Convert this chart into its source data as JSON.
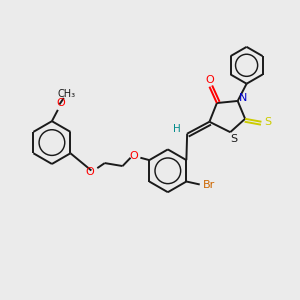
{
  "bg_color": "#ebebeb",
  "bond_color": "#1a1a1a",
  "o_color": "#ff0000",
  "n_color": "#0000cc",
  "s_thione_color": "#cccc00",
  "s_ring_color": "#1a1a1a",
  "br_color": "#cc6600",
  "h_color": "#008b8b",
  "lw": 1.4,
  "lw_thin": 1.0,
  "fs": 7.5,
  "xlim": [
    0,
    10
  ],
  "ylim": [
    0,
    8
  ]
}
